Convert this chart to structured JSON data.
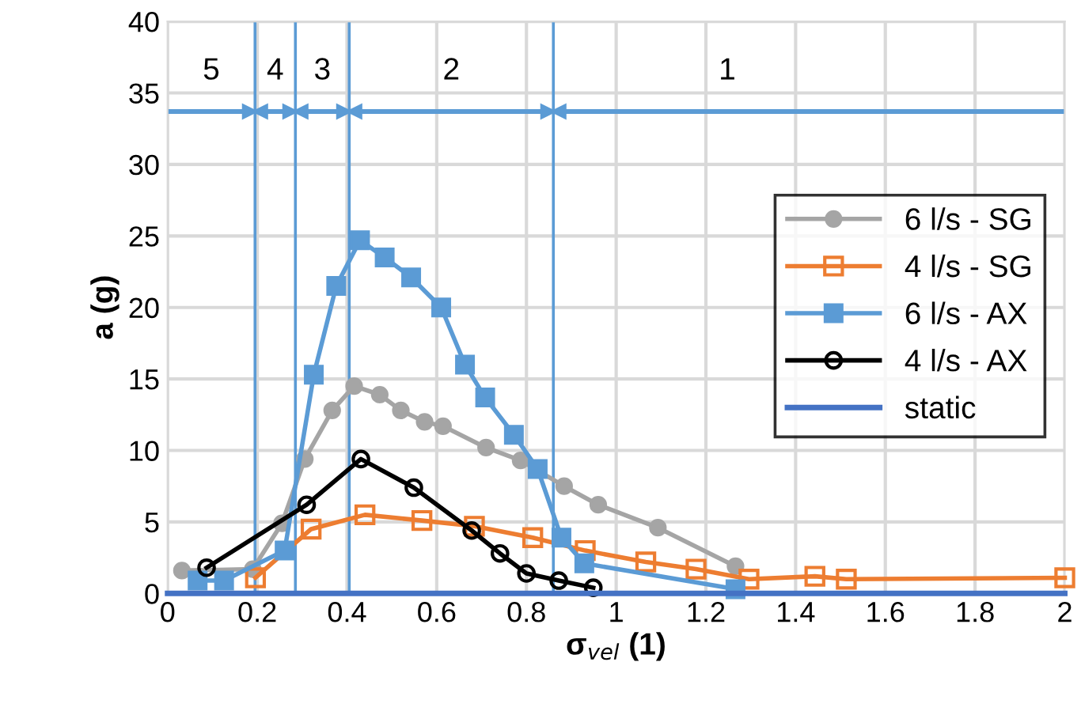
{
  "chart_data": {
    "type": "line",
    "xlabel": "σ$_{vel}$ (1)",
    "ylabel": "a (g)",
    "xlim": [
      0,
      2
    ],
    "xticks": [
      0,
      0.2,
      0.4,
      0.6,
      0.8,
      1,
      1.2,
      1.4,
      1.6,
      1.8,
      2
    ],
    "ylim": [
      0,
      40
    ],
    "yticks": [
      0,
      5,
      10,
      15,
      20,
      25,
      30,
      35,
      40
    ],
    "grid": true,
    "legend": "right",
    "series": [
      {
        "name": "6 l/s - SG",
        "color": "#a5a5a5",
        "marker": "circle",
        "x": [
          0.032,
          0.19,
          0.255,
          0.306,
          0.367,
          0.416,
          0.473,
          0.52,
          0.573,
          0.614,
          0.71,
          0.787,
          0.884,
          0.96,
          1.093,
          1.266
        ],
        "values": [
          1.6,
          1.7,
          4.9,
          9.4,
          12.8,
          14.5,
          13.9,
          12.8,
          12.0,
          11.7,
          10.2,
          9.3,
          7.5,
          6.2,
          4.6,
          1.9
        ]
      },
      {
        "name": "4 l/s - SG",
        "color": "#ed7d31",
        "marker": "square",
        "x": [
          0.196,
          0.32,
          0.44,
          0.567,
          0.684,
          0.814,
          0.931,
          1.066,
          1.178,
          1.296,
          1.443,
          1.513,
          2.0
        ],
        "values": [
          1.1,
          4.5,
          5.5,
          5.1,
          4.7,
          3.9,
          3.0,
          2.2,
          1.7,
          1.0,
          1.2,
          1.0,
          1.1
        ]
      },
      {
        "name": "6 l/s - AX",
        "color": "#5b9bd5",
        "marker": "square",
        "x": [
          0.067,
          0.126,
          0.261,
          0.326,
          0.376,
          0.429,
          0.484,
          0.543,
          0.61,
          0.663,
          0.708,
          0.772,
          0.825,
          0.878,
          0.929,
          1.266
        ],
        "values": [
          0.9,
          0.9,
          3.0,
          15.3,
          21.5,
          24.7,
          23.5,
          22.1,
          20.0,
          16.0,
          13.7,
          11.1,
          8.7,
          3.9,
          2.1,
          0.3
        ]
      },
      {
        "name": "4 l/s - AX",
        "color": "#000000",
        "marker": "circle",
        "x": [
          0.087,
          0.31,
          0.431,
          0.549,
          0.678,
          0.741,
          0.8,
          0.872,
          0.949
        ],
        "values": [
          1.8,
          6.2,
          9.4,
          7.4,
          4.4,
          2.8,
          1.4,
          0.9,
          0.4
        ]
      },
      {
        "name": "static",
        "color": "#4472c4",
        "marker": "none",
        "x": [
          0,
          2
        ],
        "values": [
          0,
          0
        ]
      }
    ],
    "ref_lines": [
      {
        "axis": "x",
        "value": 0.195,
        "color": "#5b9bd5"
      },
      {
        "axis": "x",
        "value": 0.285,
        "color": "#5b9bd5"
      },
      {
        "axis": "x",
        "value": 0.405,
        "color": "#5b9bd5"
      },
      {
        "axis": "x",
        "value": 0.86,
        "color": "#5b9bd5"
      },
      {
        "axis": "y",
        "value": 33.7,
        "color": "#5b9bd5"
      }
    ],
    "annotations": [
      "5",
      "4",
      "3",
      "2",
      "1"
    ]
  }
}
